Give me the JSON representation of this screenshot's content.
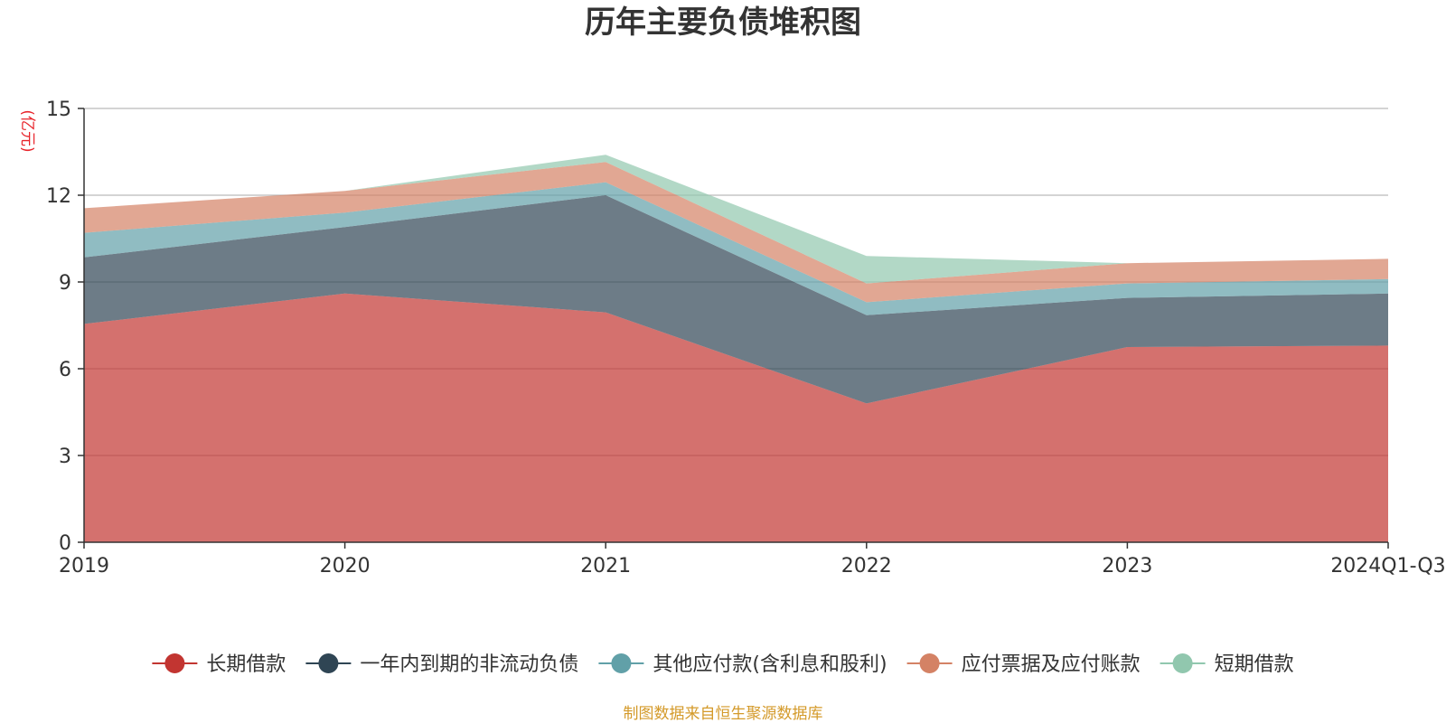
{
  "chart_data": {
    "type": "area",
    "stacked": true,
    "title": "历年主要负债堆积图",
    "ylabel": "(亿元)",
    "xlabel": "",
    "categories": [
      "2019",
      "2020",
      "2021",
      "2022",
      "2023",
      "2024Q1-Q3"
    ],
    "ylim": [
      0,
      15
    ],
    "yticks": [
      0,
      3,
      6,
      9,
      12,
      15
    ],
    "grid": true,
    "legend_position": "bottom",
    "series": [
      {
        "name": "长期借款",
        "color": "#c23531",
        "values": [
          7.55,
          8.6,
          7.95,
          4.8,
          6.75,
          6.8
        ]
      },
      {
        "name": "一年内到期的非流动负债",
        "color": "#2f4554",
        "values": [
          2.3,
          2.3,
          4.05,
          3.05,
          1.7,
          1.8
        ]
      },
      {
        "name": "其他应付款(含利息和股利)",
        "color": "#61a0a8",
        "values": [
          0.85,
          0.5,
          0.45,
          0.45,
          0.5,
          0.5
        ]
      },
      {
        "name": "应付票据及应付账款",
        "color": "#d48265",
        "values": [
          0.85,
          0.75,
          0.7,
          0.65,
          0.7,
          0.7
        ]
      },
      {
        "name": "短期借款",
        "color": "#91c7ae",
        "values": [
          0.0,
          0.0,
          0.25,
          0.95,
          0.0,
          0.0
        ]
      }
    ],
    "source": "制图数据来自恒生聚源数据库"
  }
}
